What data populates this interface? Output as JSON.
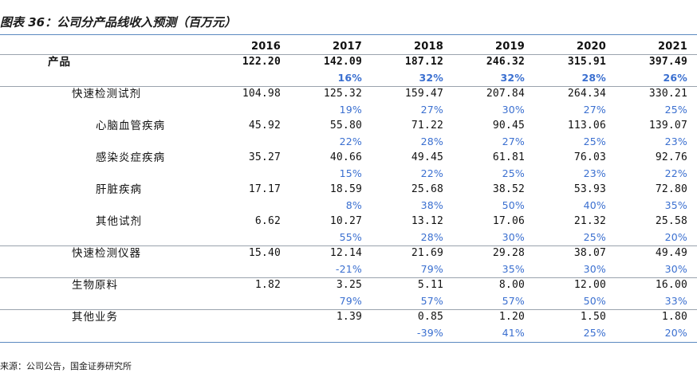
{
  "title": "图表 36：公司分产品线收入预测（百万元）",
  "years": [
    "2016",
    "2017",
    "2018",
    "2019",
    "2020",
    "2021"
  ],
  "rows": [
    {
      "label": "产品",
      "values": [
        "122.20",
        "142.09",
        "187.12",
        "246.32",
        "315.91",
        "397.49"
      ],
      "growth": [
        "",
        "16%",
        "32%",
        "32%",
        "28%",
        "26%"
      ]
    },
    {
      "label": "快速检测试剂",
      "values": [
        "104.98",
        "125.32",
        "159.47",
        "207.84",
        "264.34",
        "330.21"
      ],
      "growth": [
        "",
        "19%",
        "27%",
        "30%",
        "27%",
        "25%"
      ]
    },
    {
      "label": "心脑血管疾病",
      "values": [
        "45.92",
        "55.80",
        "71.22",
        "90.45",
        "113.06",
        "139.07"
      ],
      "growth": [
        "",
        "22%",
        "28%",
        "27%",
        "25%",
        "23%"
      ]
    },
    {
      "label": "感染炎症疾病",
      "values": [
        "35.27",
        "40.66",
        "49.45",
        "61.81",
        "76.03",
        "92.76"
      ],
      "growth": [
        "",
        "15%",
        "22%",
        "25%",
        "23%",
        "22%"
      ]
    },
    {
      "label": "肝脏疾病",
      "values": [
        "17.17",
        "18.59",
        "25.68",
        "38.52",
        "53.93",
        "72.80"
      ],
      "growth": [
        "",
        "8%",
        "38%",
        "50%",
        "40%",
        "35%"
      ]
    },
    {
      "label": "其他试剂",
      "values": [
        "6.62",
        "10.27",
        "13.12",
        "17.06",
        "21.32",
        "25.58"
      ],
      "growth": [
        "",
        "55%",
        "28%",
        "30%",
        "25%",
        "20%"
      ]
    },
    {
      "label": "快速检测仪器",
      "values": [
        "15.40",
        "12.14",
        "21.69",
        "29.28",
        "38.07",
        "49.49"
      ],
      "growth": [
        "",
        "-21%",
        "79%",
        "35%",
        "30%",
        "30%"
      ]
    },
    {
      "label": "生物原料",
      "values": [
        "1.82",
        "3.25",
        "5.11",
        "8.00",
        "12.00",
        "16.00"
      ],
      "growth": [
        "",
        "79%",
        "57%",
        "57%",
        "50%",
        "33%"
      ]
    },
    {
      "label": "其他业务",
      "values": [
        "",
        "1.39",
        "0.85",
        "1.20",
        "1.50",
        "1.80"
      ],
      "growth": [
        "",
        "",
        "-39%",
        "41%",
        "25%",
        "20%"
      ]
    }
  ],
  "source": "来源：公司公告，国金证券研究所"
}
